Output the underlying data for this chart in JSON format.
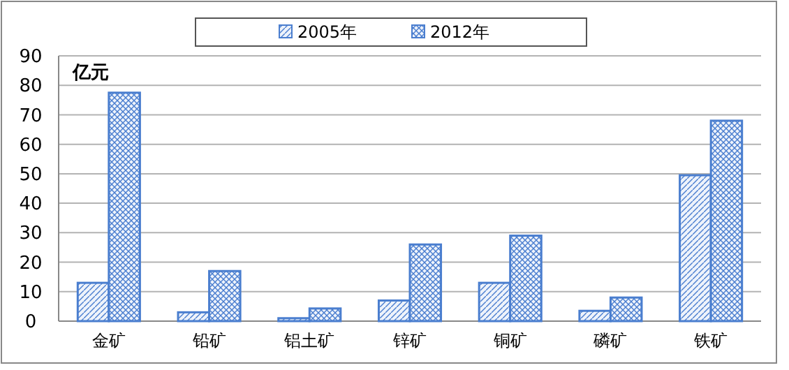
{
  "chart_data": {
    "type": "bar",
    "ylabel": "亿元",
    "categories": [
      "金矿",
      "铅矿",
      "铝土矿",
      "锌矿",
      "铜矿",
      "磷矿",
      "铁矿"
    ],
    "series": [
      {
        "name": "2005年",
        "color": "#4a7ecf",
        "values": [
          13,
          3,
          1,
          7,
          13,
          3.5,
          49.5
        ]
      },
      {
        "name": "2012年",
        "color": "#4a7ecf",
        "values": [
          77.5,
          17,
          4.3,
          26,
          29,
          8,
          68
        ]
      }
    ],
    "ylim": [
      0,
      90
    ],
    "yticks": [
      0,
      10,
      20,
      30,
      40,
      50,
      60,
      70,
      80,
      90
    ],
    "grid": "y",
    "legend": "top"
  }
}
